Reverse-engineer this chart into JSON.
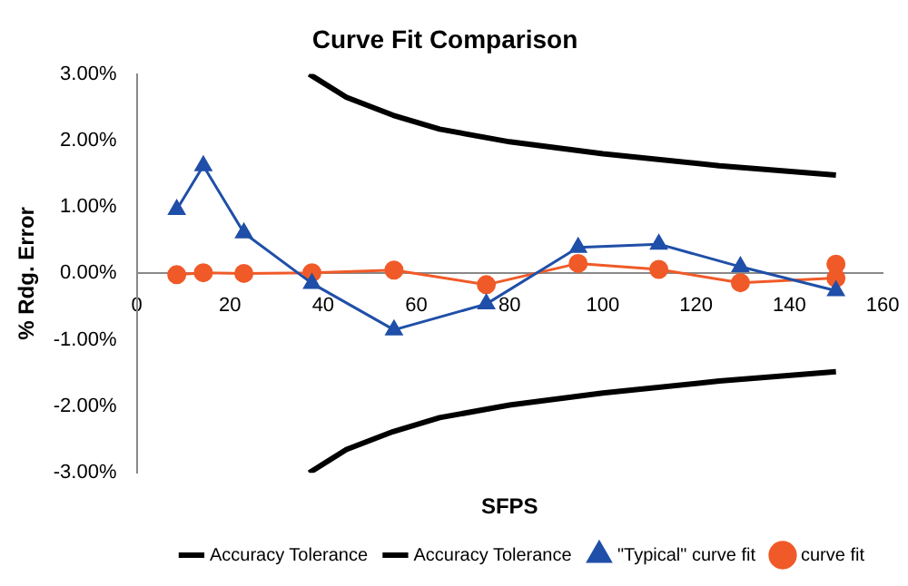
{
  "chart_data": {
    "type": "line",
    "title": "Curve Fit Comparison",
    "xlabel": "SFPS",
    "ylabel": "% Rdg. Error",
    "xlim": [
      0,
      160
    ],
    "xticks": [
      0,
      20,
      40,
      60,
      80,
      100,
      120,
      140,
      160
    ],
    "ylim": [
      -3,
      3
    ],
    "yticks": [
      {
        "value": -3,
        "label": "-3.00%"
      },
      {
        "value": -2,
        "label": "-2.00%"
      },
      {
        "value": -1,
        "label": "-1.00%"
      },
      {
        "value": 0,
        "label": "0.00%"
      },
      {
        "value": 1,
        "label": "1.00%"
      },
      {
        "value": 2,
        "label": "2.00%"
      },
      {
        "value": 3,
        "label": "3.00%"
      }
    ],
    "legend": "bottom right",
    "series": [
      {
        "name": "Accuracy Tolerance",
        "color": "#000000",
        "marker": "none",
        "x": [
          37,
          45,
          55,
          65,
          80,
          100,
          125,
          150
        ],
        "values": [
          3.0,
          2.65,
          2.38,
          2.17,
          1.98,
          1.8,
          1.62,
          1.48
        ]
      },
      {
        "name": "Accuracy Tolerance",
        "color": "#000000",
        "marker": "none",
        "x": [
          37,
          45,
          55,
          65,
          80,
          100,
          125,
          150
        ],
        "values": [
          -3.0,
          -2.65,
          -2.38,
          -2.17,
          -1.98,
          -1.8,
          -1.62,
          -1.48
        ]
      },
      {
        "name": "\"Typical\" curve fit",
        "color": "#1f4fa8",
        "marker": "triangle",
        "x": [
          8.6,
          14.3,
          23,
          37.6,
          55.2,
          75,
          94.7,
          112,
          129.5,
          150
        ],
        "values": [
          0.96,
          1.62,
          0.61,
          -0.15,
          -0.85,
          -0.46,
          0.39,
          0.44,
          0.1,
          -0.26
        ]
      },
      {
        "name": "curve fit",
        "color": "#f05a28",
        "marker": "circle",
        "x": [
          8.6,
          14.3,
          23,
          37.6,
          55.2,
          75,
          94.7,
          112,
          129.5,
          150,
          150
        ],
        "values": [
          -0.02,
          0.01,
          0,
          0.01,
          0.05,
          -0.17,
          0.15,
          0.06,
          -0.14,
          -0.07,
          0.14
        ]
      }
    ]
  }
}
